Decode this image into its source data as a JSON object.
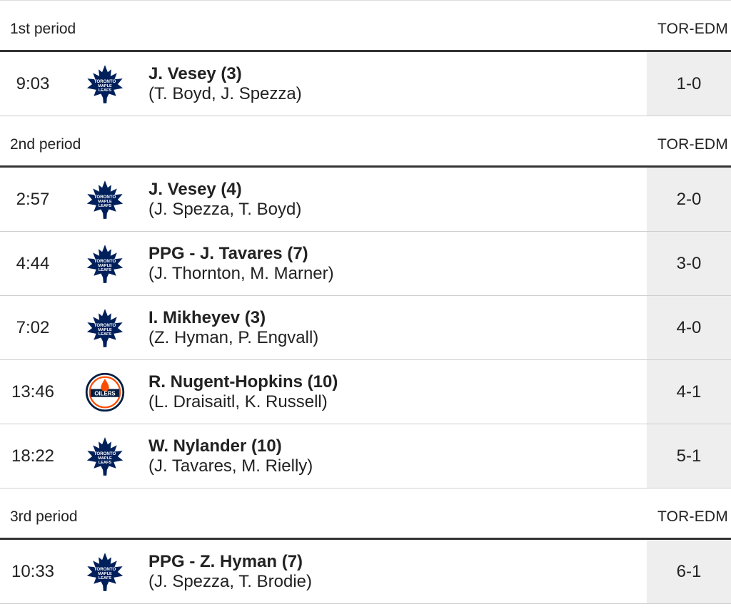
{
  "score_header": "TOR-EDM",
  "periods": [
    {
      "label": "1st period",
      "goals": [
        {
          "time": "9:03",
          "team": "TOR",
          "logo_icon": "maple-leafs-logo-icon",
          "scorer": "J. Vesey (3)",
          "assists": "(T. Boyd, J. Spezza)",
          "score": "1-0"
        }
      ]
    },
    {
      "label": "2nd period",
      "goals": [
        {
          "time": "2:57",
          "team": "TOR",
          "logo_icon": "maple-leafs-logo-icon",
          "scorer": "J. Vesey (4)",
          "assists": "(J. Spezza, T. Boyd)",
          "score": "2-0"
        },
        {
          "time": "4:44",
          "team": "TOR",
          "logo_icon": "maple-leafs-logo-icon",
          "scorer": "PPG - J. Tavares (7)",
          "assists": "(J. Thornton, M. Marner)",
          "score": "3-0"
        },
        {
          "time": "7:02",
          "team": "TOR",
          "logo_icon": "maple-leafs-logo-icon",
          "scorer": "I. Mikheyev (3)",
          "assists": "(Z. Hyman, P. Engvall)",
          "score": "4-0"
        },
        {
          "time": "13:46",
          "team": "EDM",
          "logo_icon": "oilers-logo-icon",
          "scorer": "R. Nugent-Hopkins (10)",
          "assists": "(L. Draisaitl, K. Russell)",
          "score": "4-1"
        },
        {
          "time": "18:22",
          "team": "TOR",
          "logo_icon": "maple-leafs-logo-icon",
          "scorer": "W. Nylander (10)",
          "assists": "(J. Tavares, M. Rielly)",
          "score": "5-1"
        }
      ]
    },
    {
      "label": "3rd period",
      "goals": [
        {
          "time": "10:33",
          "team": "TOR",
          "logo_icon": "maple-leafs-logo-icon",
          "scorer": "PPG - Z. Hyman (7)",
          "assists": "(J. Spezza, T. Brodie)",
          "score": "6-1"
        }
      ]
    }
  ],
  "colors": {
    "leafs_blue": "#00205b",
    "oilers_navy": "#041e42",
    "oilers_orange": "#fc4c02",
    "score_cell_bg": "#eeeeee",
    "header_rule": "#333333"
  }
}
